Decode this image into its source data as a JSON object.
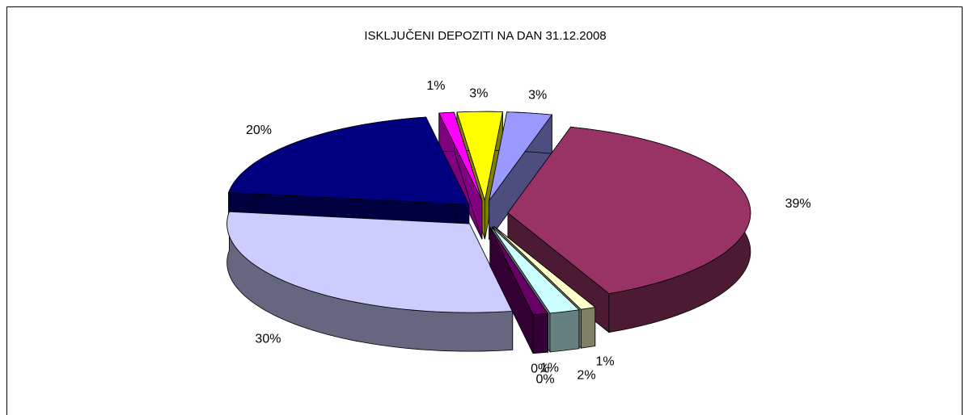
{
  "chart_data": {
    "type": "pie",
    "title": "ISKLJUČENI DEPOZITI NA DAN 31.12.2008",
    "categories": [
      null,
      null,
      null,
      null,
      null,
      null,
      null,
      null,
      null,
      null,
      null
    ],
    "values": [
      39,
      1,
      2,
      1,
      0,
      0,
      30,
      20,
      1,
      3,
      3
    ],
    "value_labels": [
      "39%",
      "1%",
      "2%",
      "1%",
      "0%",
      "0%",
      "30%",
      "20%",
      "1%",
      "3%",
      "3%"
    ],
    "colors": [
      "#993366",
      "#ffffcc",
      "#ccffff",
      "#660066",
      "#003366",
      "#0066cc",
      "#ccccff",
      "#000080",
      "#ff00ff",
      "#ffff00",
      "#9999ff"
    ]
  }
}
